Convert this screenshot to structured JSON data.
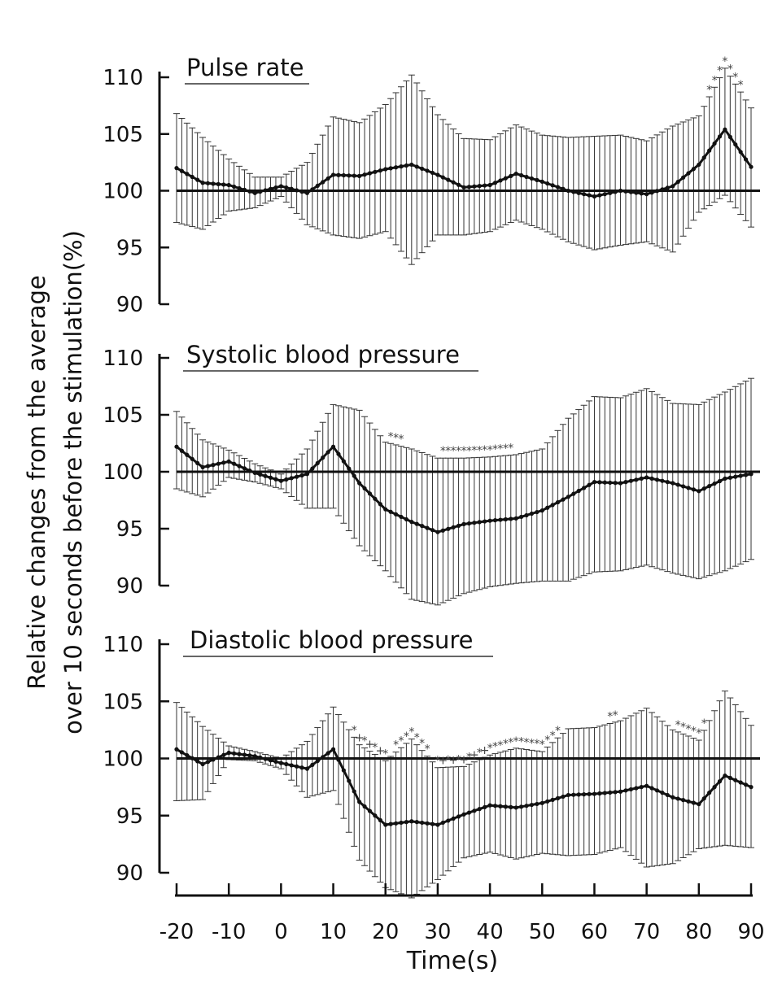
{
  "figure": {
    "ylabel_line1": "Relative changes from the average",
    "ylabel_line2": "over 10 seconds before the stimulation(%)",
    "xlabel": "Time(s)",
    "xticks": [
      -20,
      -10,
      0,
      10,
      20,
      30,
      40,
      50,
      60,
      70,
      80,
      90
    ]
  },
  "chart_data": [
    {
      "type": "line",
      "title": "Pulse rate",
      "baseline": 100,
      "ylim": [
        90,
        110
      ],
      "yticks": [
        90,
        95,
        100,
        105,
        110
      ],
      "xlim": [
        -20,
        90
      ],
      "x": [
        -20,
        -15,
        -10,
        -5,
        0,
        5,
        10,
        15,
        20,
        25,
        30,
        35,
        40,
        45,
        50,
        55,
        60,
        65,
        70,
        75,
        80,
        85,
        90
      ],
      "mean": [
        102,
        100.7,
        100.5,
        99.8,
        100.4,
        99.8,
        101.4,
        101.3,
        101.9,
        102.3,
        101.4,
        100.3,
        100.5,
        101.5,
        100.8,
        100,
        99.5,
        100,
        99.7,
        100.4,
        102.3,
        105.4,
        102.1
      ],
      "upper": [
        106.8,
        104.7,
        102.8,
        101.2,
        101.2,
        102.5,
        106.5,
        106,
        107.6,
        110.2,
        106.7,
        104.6,
        104.5,
        105.8,
        104.9,
        104.7,
        104.8,
        104.9,
        104.4,
        105.7,
        106.6,
        110.8,
        107.3
      ],
      "lower": [
        97.2,
        96.6,
        98.2,
        98.5,
        99.5,
        97,
        96.1,
        95.8,
        96.4,
        93.5,
        96.1,
        96.1,
        96.4,
        97.4,
        96.6,
        95.5,
        94.8,
        95.2,
        95.5,
        94.6,
        98.1,
        99.6,
        96.8
      ],
      "significance": [
        {
          "x_range": [
            82,
            88
          ],
          "symbols": "*"
        }
      ]
    },
    {
      "type": "line",
      "title": "Systolic blood pressure",
      "baseline": 100,
      "ylim": [
        90,
        110
      ],
      "yticks": [
        90,
        95,
        100,
        105,
        110
      ],
      "xlim": [
        -20,
        90
      ],
      "x": [
        -20,
        -15,
        -10,
        -5,
        0,
        5,
        10,
        15,
        20,
        25,
        30,
        35,
        40,
        45,
        50,
        55,
        60,
        65,
        70,
        75,
        80,
        85,
        90
      ],
      "mean": [
        102.2,
        100.4,
        100.9,
        99.9,
        99.2,
        99.8,
        102.2,
        99,
        96.7,
        95.6,
        94.7,
        95.4,
        95.7,
        95.9,
        96.6,
        97.8,
        99.1,
        99,
        99.5,
        99,
        98.3,
        99.4,
        99.8
      ],
      "upper": [
        105.3,
        102.8,
        101.9,
        100.7,
        99.8,
        102,
        105.9,
        105.4,
        102.6,
        102,
        101.2,
        101.2,
        101.3,
        101.5,
        102,
        104.7,
        106.6,
        106.5,
        107.3,
        106,
        105.9,
        107,
        108.2
      ],
      "lower": [
        98.5,
        97.8,
        99.5,
        99.1,
        98.5,
        96.8,
        96.8,
        93.5,
        91.3,
        88.8,
        88.3,
        89.3,
        89.9,
        90.2,
        90.4,
        90.4,
        91.2,
        91.3,
        91.8,
        91.1,
        90.6,
        91.3,
        92.3
      ],
      "significance": [
        {
          "x_range": [
            21,
            23
          ],
          "symbols": "*"
        },
        {
          "x_range": [
            31,
            44
          ],
          "symbols": "*"
        }
      ]
    },
    {
      "type": "line",
      "title": "Diastolic blood pressure",
      "baseline": 100,
      "ylim": [
        90,
        110
      ],
      "yticks": [
        90,
        95,
        100,
        105,
        110
      ],
      "xlim": [
        -20,
        90
      ],
      "x": [
        -20,
        -15,
        -10,
        -5,
        0,
        5,
        10,
        15,
        20,
        25,
        30,
        35,
        40,
        45,
        50,
        55,
        60,
        65,
        70,
        75,
        80,
        85,
        90
      ],
      "mean": [
        100.8,
        99.5,
        100.5,
        100.2,
        99.6,
        99.1,
        100.8,
        96.2,
        94.2,
        94.5,
        94.2,
        95.1,
        95.9,
        95.7,
        96.1,
        96.8,
        96.9,
        97.1,
        97.6,
        96.6,
        96,
        98.5,
        97.5
      ],
      "upper": [
        104.9,
        102.8,
        101.1,
        100.6,
        100,
        101.5,
        104.5,
        101.2,
        99.8,
        101.7,
        99.2,
        99.3,
        100.3,
        100.9,
        100.6,
        102.6,
        102.7,
        103.3,
        104.4,
        102.5,
        101.6,
        105.9,
        102.9
      ],
      "lower": [
        96.3,
        96.4,
        99.9,
        99.8,
        99.1,
        96.6,
        97.2,
        91.1,
        88.7,
        87.8,
        89.4,
        91.3,
        91.8,
        91.2,
        91.7,
        91.5,
        91.6,
        92.2,
        90.5,
        90.8,
        92.1,
        92.4,
        92.2
      ],
      "significance": [
        {
          "x_range": [
            14,
            20
          ],
          "symbols": "*+"
        },
        {
          "x_range": [
            22,
            28
          ],
          "symbols": "*"
        },
        {
          "x_range": [
            30,
            39
          ],
          "symbols": "*+"
        },
        {
          "x_range": [
            40,
            53
          ],
          "symbols": "*"
        },
        {
          "x_range": [
            63,
            64
          ],
          "symbols": "*"
        },
        {
          "x_range": [
            76,
            81
          ],
          "symbols": "*"
        }
      ]
    }
  ]
}
